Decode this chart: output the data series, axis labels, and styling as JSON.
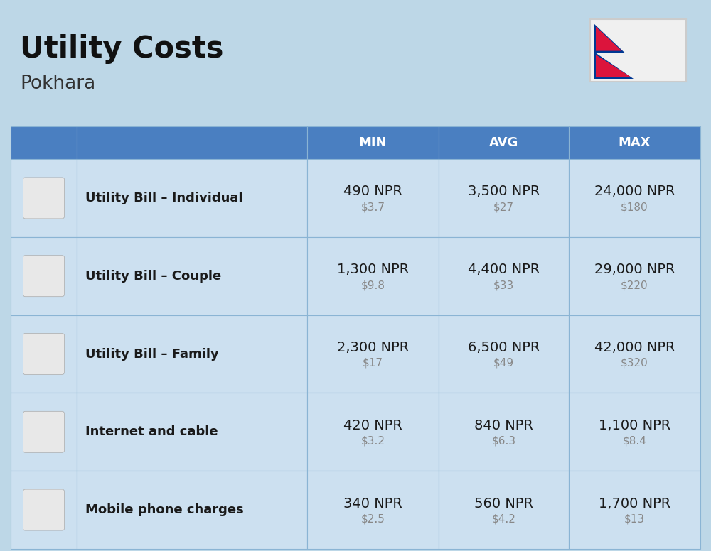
{
  "title": "Utility Costs",
  "subtitle": "Pokhara",
  "bg_color": "#bdd7e7",
  "header_color": "#4a7fc1",
  "header_text_color": "#ffffff",
  "row_bg": "#cce0f0",
  "cell_line_color": "#8ab4d4",
  "col_headers": [
    "MIN",
    "AVG",
    "MAX"
  ],
  "rows": [
    {
      "label": "Utility Bill – Individual",
      "min_npr": "490 NPR",
      "min_usd": "$3.7",
      "avg_npr": "3,500 NPR",
      "avg_usd": "$27",
      "max_npr": "24,000 NPR",
      "max_usd": "$180"
    },
    {
      "label": "Utility Bill – Couple",
      "min_npr": "1,300 NPR",
      "min_usd": "$9.8",
      "avg_npr": "4,400 NPR",
      "avg_usd": "$33",
      "max_npr": "29,000 NPR",
      "max_usd": "$220"
    },
    {
      "label": "Utility Bill – Family",
      "min_npr": "2,300 NPR",
      "min_usd": "$17",
      "avg_npr": "6,500 NPR",
      "avg_usd": "$49",
      "max_npr": "42,000 NPR",
      "max_usd": "$320"
    },
    {
      "label": "Internet and cable",
      "min_npr": "420 NPR",
      "min_usd": "$3.2",
      "avg_npr": "840 NPR",
      "avg_usd": "$6.3",
      "max_npr": "1,100 NPR",
      "max_usd": "$8.4"
    },
    {
      "label": "Mobile phone charges",
      "min_npr": "340 NPR",
      "min_usd": "$2.5",
      "avg_npr": "560 NPR",
      "avg_usd": "$4.2",
      "max_npr": "1,700 NPR",
      "max_usd": "$13"
    }
  ],
  "title_fontsize": 30,
  "subtitle_fontsize": 19,
  "header_fontsize": 13,
  "label_fontsize": 13,
  "value_fontsize": 14,
  "usd_fontsize": 11,
  "flag_white": "#f0f0f0",
  "flag_red": "#DC143C",
  "flag_blue": "#003893"
}
